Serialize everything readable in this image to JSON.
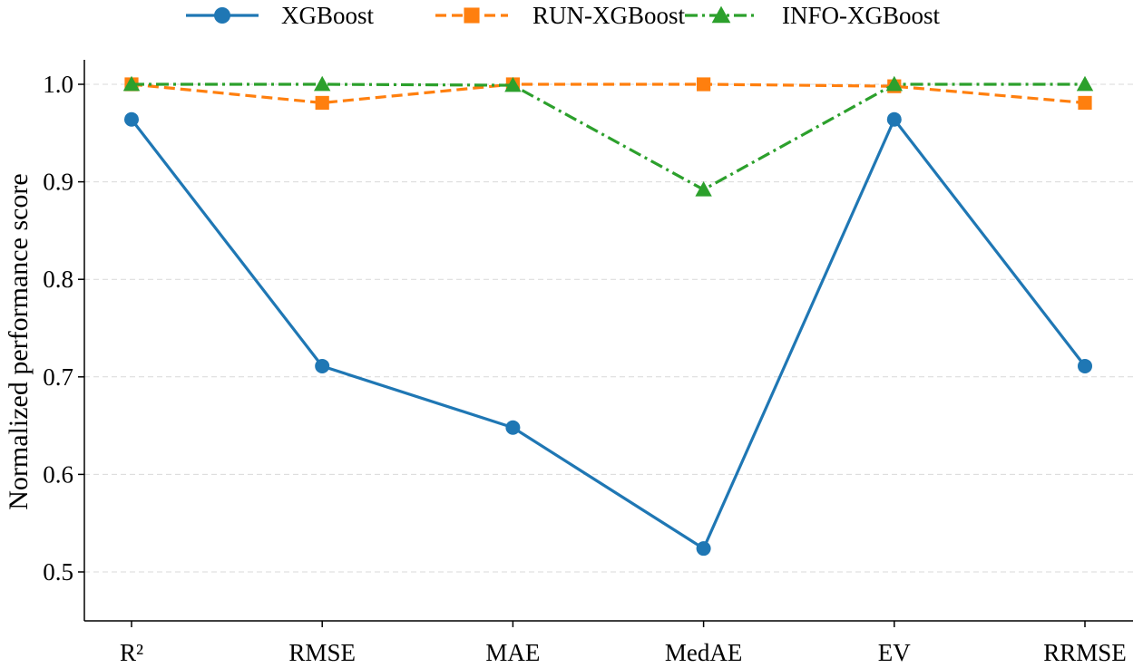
{
  "chart_data": {
    "type": "line",
    "title": "",
    "xlabel": "",
    "ylabel": "Normalized performance score",
    "categories": [
      "R²",
      "RMSE",
      "MAE",
      "MedAE",
      "EV",
      "RRMSE"
    ],
    "ylim": [
      0.45,
      1.025
    ],
    "yticks": [
      0.5,
      0.6,
      0.7,
      0.8,
      0.9,
      1.0
    ],
    "ytick_labels": [
      "0.5",
      "0.6",
      "0.7",
      "0.8",
      "0.9",
      "1.0"
    ],
    "grid": "horizontal, dashed",
    "legend_position": "top-center",
    "series": [
      {
        "name": "XGBoost",
        "values": [
          0.964,
          0.711,
          0.648,
          0.524,
          0.964,
          0.711
        ],
        "color": "#1f77b4",
        "line_style": "solid",
        "marker": "circle"
      },
      {
        "name": "RUN-XGBoost",
        "values": [
          1.0,
          0.981,
          1.0,
          1.0,
          0.998,
          0.981
        ],
        "color": "#ff7f0e",
        "line_style": "dashed",
        "marker": "square"
      },
      {
        "name": "INFO-XGBoost",
        "values": [
          1.0,
          1.0,
          0.999,
          0.892,
          1.0,
          1.0
        ],
        "color": "#2ca02c",
        "line_style": "dashdot",
        "marker": "triangle"
      }
    ]
  }
}
